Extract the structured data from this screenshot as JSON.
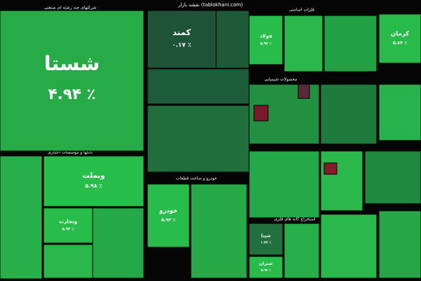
{
  "chart_data": {
    "type": "treemap",
    "title": "نقشه بازار (tablokhani.com)",
    "groups": [
      "شرکتهای چند رشته ای صنعتی",
      "بانکها و موسسات اعتباری",
      "فلزات اساسی",
      "محصولات شیمیایی",
      "خودرو و ساخت قطعات",
      "استخراج کانه های فلزی"
    ],
    "categories": [
      "شستا",
      "وبملت",
      "وتجارت",
      "کمند",
      "فولاد",
      "کرمان",
      "خودرو",
      "شپنا",
      "شتران"
    ],
    "values": [
      4.94,
      5.98,
      5.93,
      0.17,
      5.92,
      5.84,
      5.93,
      1.74,
      5.94
    ],
    "value_labels": [
      "۴.۹۴ ٪",
      "۵.۹۸ ٪",
      "۵.۹۳ ٪",
      "۰.۱۷ ٪",
      "۵.۹۲ ٪",
      "۵.۸۴ ٪",
      "۵.۹۳ ٪",
      "۱.۷۴ ٪",
      "۵.۹۴ ٪"
    ]
  }
}
